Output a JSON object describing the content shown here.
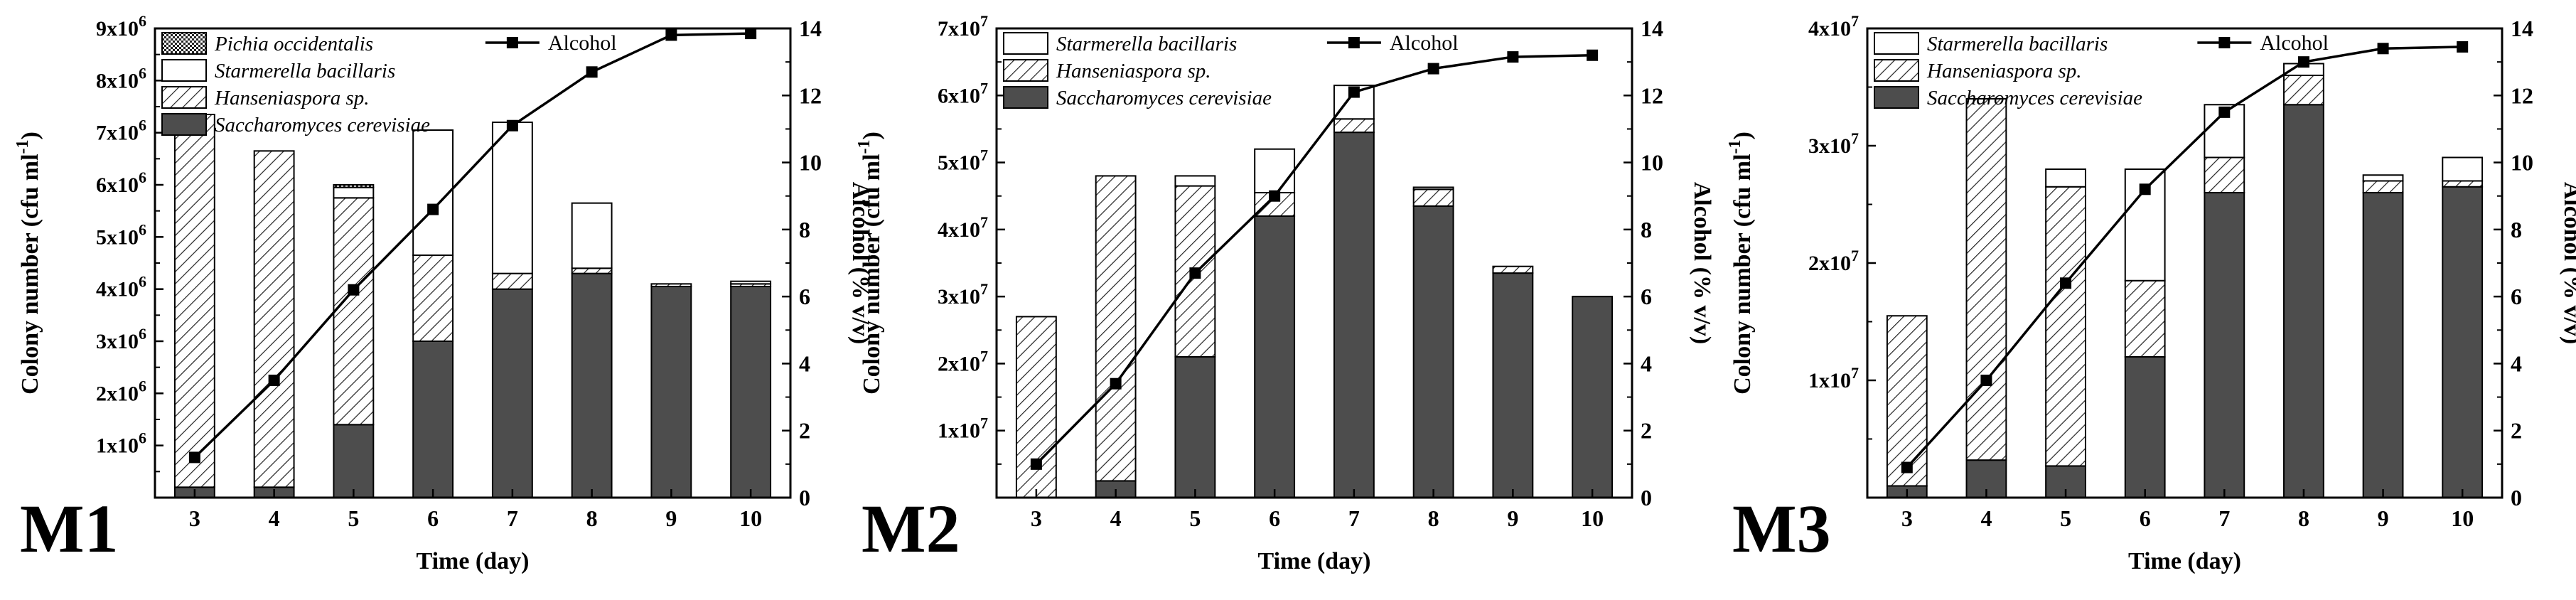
{
  "chart_data": [
    {
      "type": "bar",
      "panel_label": "M1",
      "categories": [
        "3",
        "4",
        "5",
        "6",
        "7",
        "8",
        "9",
        "10"
      ],
      "xlabel": "Time (day)",
      "ylabel": "Colony number (cfu ml",
      "ylabel_sup": "-1",
      "ylabel_end": ")",
      "ylabel_right": "Alcohol (% v/v)",
      "ylim": [
        0,
        9000000
      ],
      "ylim_right": [
        0,
        14
      ],
      "yticks": [
        {
          "value": 1000000,
          "base": "1x10",
          "exp": "6"
        },
        {
          "value": 2000000,
          "base": "2x10",
          "exp": "6"
        },
        {
          "value": 3000000,
          "base": "3x10",
          "exp": "6"
        },
        {
          "value": 4000000,
          "base": "4x10",
          "exp": "6"
        },
        {
          "value": 5000000,
          "base": "5x10",
          "exp": "6"
        },
        {
          "value": 6000000,
          "base": "6x10",
          "exp": "6"
        },
        {
          "value": 7000000,
          "base": "7x10",
          "exp": "6"
        },
        {
          "value": 8000000,
          "base": "8x10",
          "exp": "6"
        },
        {
          "value": 9000000,
          "base": "9x10",
          "exp": "6"
        }
      ],
      "yticks_right": [
        "0",
        "2",
        "4",
        "6",
        "8",
        "10",
        "12",
        "14"
      ],
      "stacked": true,
      "series": [
        {
          "name": "Saccharomyces cerevisiae",
          "pattern": "dark",
          "values": [
            200000,
            200000,
            1400000,
            3000000,
            4000000,
            4300000,
            4050000,
            4050000
          ]
        },
        {
          "name": "Hanseniaspora sp.",
          "pattern": "hatch",
          "values": [
            7150000,
            6450000,
            4350000,
            1650000,
            300000,
            100000,
            50000,
            50000
          ]
        },
        {
          "name": "Starmerella bacillaris",
          "pattern": "white",
          "values": [
            0,
            0,
            200000,
            2400000,
            2900000,
            1250000,
            0,
            50000
          ]
        },
        {
          "name": "Pichia occidentalis",
          "pattern": "grid",
          "values": [
            0,
            0,
            50000,
            0,
            0,
            0,
            0,
            0
          ]
        }
      ],
      "line": {
        "name": "Alcohol",
        "values": [
          1.2,
          3.5,
          6.2,
          8.6,
          11.1,
          12.7,
          13.8,
          13.85
        ]
      }
    },
    {
      "type": "bar",
      "panel_label": "M2",
      "categories": [
        "3",
        "4",
        "5",
        "6",
        "7",
        "8",
        "9",
        "10"
      ],
      "xlabel": "Time (day)",
      "ylabel": "Colony number (cfu ml",
      "ylabel_sup": "-1",
      "ylabel_end": ")",
      "ylabel_right": "Alcohol (% v/v)",
      "ylim": [
        0,
        70000000
      ],
      "ylim_right": [
        0,
        14
      ],
      "yticks": [
        {
          "value": 10000000,
          "base": "1x10",
          "exp": "7"
        },
        {
          "value": 20000000,
          "base": "2x10",
          "exp": "7"
        },
        {
          "value": 30000000,
          "base": "3x10",
          "exp": "7"
        },
        {
          "value": 40000000,
          "base": "4x10",
          "exp": "7"
        },
        {
          "value": 50000000,
          "base": "5x10",
          "exp": "7"
        },
        {
          "value": 60000000,
          "base": "6x10",
          "exp": "7"
        },
        {
          "value": 70000000,
          "base": "7x10",
          "exp": "7"
        }
      ],
      "yticks_right": [
        "0",
        "2",
        "4",
        "6",
        "8",
        "10",
        "12",
        "14"
      ],
      "stacked": true,
      "series": [
        {
          "name": "Saccharomyces cerevisiae",
          "pattern": "dark",
          "values": [
            0,
            2500000,
            21000000,
            42000000,
            54500000,
            43500000,
            33500000,
            30000000
          ]
        },
        {
          "name": "Hanseniaspora sp.",
          "pattern": "hatch",
          "values": [
            27000000,
            45500000,
            25500000,
            3500000,
            2000000,
            2500000,
            1000000,
            0
          ]
        },
        {
          "name": "Starmerella bacillaris",
          "pattern": "white",
          "values": [
            0,
            0,
            1500000,
            6500000,
            5000000,
            300000,
            0,
            0
          ]
        }
      ],
      "line": {
        "name": "Alcohol",
        "values": [
          1.0,
          3.4,
          6.7,
          9.0,
          12.1,
          12.8,
          13.15,
          13.2
        ]
      }
    },
    {
      "type": "bar",
      "panel_label": "M3",
      "categories": [
        "3",
        "4",
        "5",
        "6",
        "7",
        "8",
        "9",
        "10"
      ],
      "xlabel": "Time (day)",
      "ylabel": "Colony number (cfu ml",
      "ylabel_sup": "-1",
      "ylabel_end": ")",
      "ylabel_right": "Alcohol (% v/v)",
      "ylim": [
        0,
        40000000
      ],
      "ylim_right": [
        0,
        14
      ],
      "yticks": [
        {
          "value": 10000000,
          "base": "1x10",
          "exp": "7"
        },
        {
          "value": 20000000,
          "base": "2x10",
          "exp": "7"
        },
        {
          "value": 30000000,
          "base": "3x10",
          "exp": "7"
        },
        {
          "value": 40000000,
          "base": "4x10",
          "exp": "7"
        }
      ],
      "yticks_right": [
        "0",
        "2",
        "4",
        "6",
        "8",
        "10",
        "12",
        "14"
      ],
      "stacked": true,
      "series": [
        {
          "name": "Saccharomyces cerevisiae",
          "pattern": "dark",
          "values": [
            1000000,
            3200000,
            2700000,
            12000000,
            26000000,
            33500000,
            26000000,
            26500000
          ]
        },
        {
          "name": "Hanseniaspora sp.",
          "pattern": "hatch",
          "values": [
            14500000,
            30800000,
            23800000,
            6500000,
            3000000,
            2500000,
            1000000,
            500000
          ]
        },
        {
          "name": "Starmerella bacillaris",
          "pattern": "white",
          "values": [
            0,
            0,
            1500000,
            9500000,
            4500000,
            1000000,
            500000,
            2000000
          ]
        }
      ],
      "line": {
        "name": "Alcohol",
        "values": [
          0.9,
          3.5,
          6.4,
          9.2,
          11.5,
          13.0,
          13.4,
          13.45
        ]
      }
    }
  ]
}
